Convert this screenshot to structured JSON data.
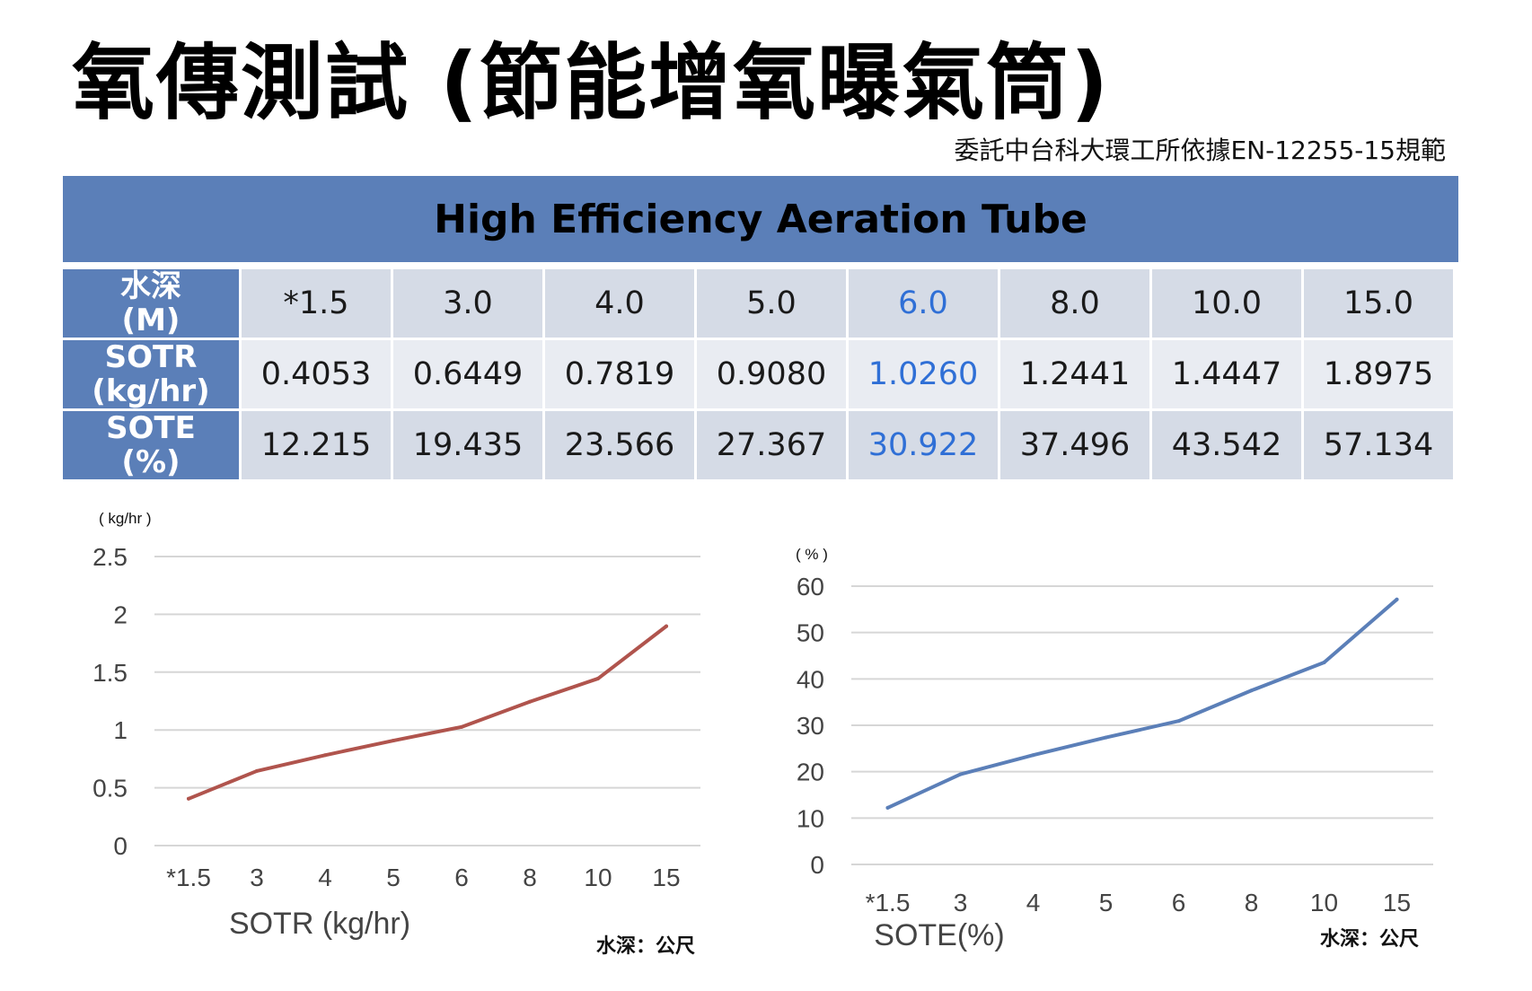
{
  "title": "氧傳測試 (節能增氧曝氣筒)",
  "subtitle": "委託中台科大環工所依據EN-12255-15規範",
  "table": {
    "header": "High Efficiency Aeration Tube",
    "rows": [
      {
        "label_line1": "水深",
        "label_line2": "(M)",
        "values": [
          "*1.5",
          "3.0",
          "4.0",
          "5.0",
          "6.0",
          "8.0",
          "10.0",
          "15.0"
        ]
      },
      {
        "label_line1": "SOTR",
        "label_line2": "(kg/hr)",
        "values": [
          "0.4053",
          "0.6449",
          "0.7819",
          "0.9080",
          "1.0260",
          "1.2441",
          "1.4447",
          "1.8975"
        ]
      },
      {
        "label_line1": "SOTE",
        "label_line2": "(%)",
        "values": [
          "12.215",
          "19.435",
          "23.566",
          "27.367",
          "30.922",
          "37.496",
          "43.542",
          "57.134"
        ]
      }
    ],
    "highlight_column_index": 4,
    "highlight_color": "#2f6fd6",
    "header_color": "#5b7fb8"
  },
  "chart_data": [
    {
      "type": "line",
      "title": "",
      "xlabel": "SOTR (kg/hr)",
      "ylabel": "( kg/hr )",
      "categories": [
        "*1.5",
        "3",
        "4",
        "5",
        "6",
        "8",
        "10",
        "15"
      ],
      "series": [
        {
          "name": "SOTR",
          "values": [
            0.4053,
            0.6449,
            0.7819,
            0.908,
            1.026,
            1.2441,
            1.4447,
            1.8975
          ],
          "color": "#b0544d"
        }
      ],
      "ylim": [
        0,
        2.5
      ],
      "yticks": [
        "0",
        "0.5",
        "1",
        "1.5",
        "2",
        "2.5"
      ],
      "note": "水深：公尺",
      "grid": true
    },
    {
      "type": "line",
      "title": "",
      "xlabel": "SOTE(%)",
      "ylabel": "( % )",
      "categories": [
        "*1.5",
        "3",
        "4",
        "5",
        "6",
        "8",
        "10",
        "15"
      ],
      "series": [
        {
          "name": "SOTE",
          "values": [
            12.215,
            19.435,
            23.566,
            27.367,
            30.922,
            37.496,
            43.542,
            57.134
          ],
          "color": "#5b7fb8"
        }
      ],
      "ylim": [
        0,
        60
      ],
      "yticks": [
        "0",
        "10",
        "20",
        "30",
        "40",
        "50",
        "60"
      ],
      "note": "水深：公尺",
      "grid": true
    }
  ]
}
